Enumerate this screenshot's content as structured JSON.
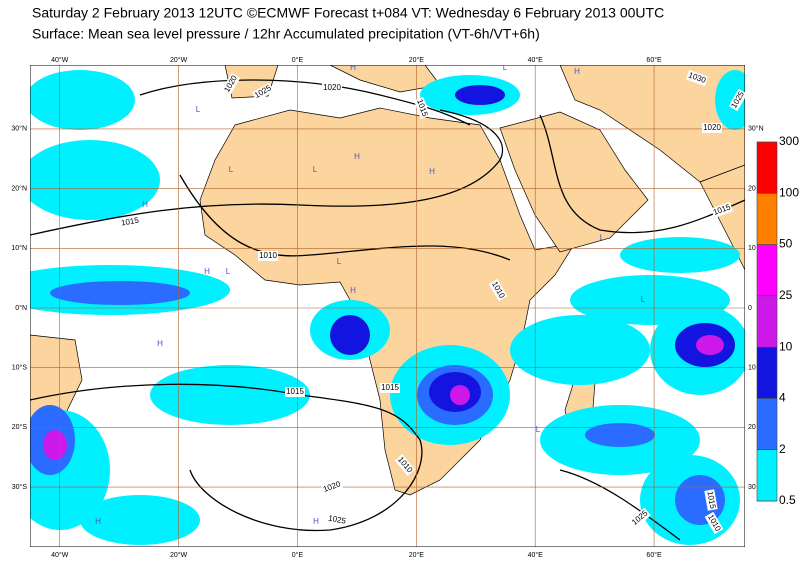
{
  "header": {
    "title": "Saturday 2 February 2013 12UTC ©ECMWF Forecast t+084 VT: Wednesday 6 February 2013 00UTC",
    "subtitle": "Surface: Mean sea level pressure / 12hr Accumulated precipitation (VT-6h/VT+6h)"
  },
  "map": {
    "lon_ticks": [
      {
        "value": -40,
        "label": "40°W"
      },
      {
        "value": -20,
        "label": "20°W"
      },
      {
        "value": 0,
        "label": "0°E"
      },
      {
        "value": 20,
        "label": "20°E"
      },
      {
        "value": 40,
        "label": "40°E"
      },
      {
        "value": 60,
        "label": "60°E"
      }
    ],
    "lat_ticks": [
      {
        "value": 30,
        "label": "30°N"
      },
      {
        "value": 20,
        "label": "20°N"
      },
      {
        "value": 10,
        "label": "10°N"
      },
      {
        "value": 0,
        "label": "0°N"
      },
      {
        "value": -10,
        "label": "10°S"
      },
      {
        "value": -20,
        "label": "20°S"
      },
      {
        "value": -30,
        "label": "30°S"
      }
    ],
    "lat_right_labels": [
      "30°N",
      "20",
      "10",
      "0",
      "10",
      "20",
      "30"
    ],
    "isobar_labels": [
      "1020",
      "1025",
      "1020",
      "1015",
      "1030",
      "1025",
      "1020",
      "1015",
      "1015",
      "1010",
      "1010",
      "1015",
      "1015",
      "1010",
      "1020",
      "1025",
      "1025",
      "1015",
      "1010"
    ],
    "pressure_centres": [
      "H",
      "L",
      "L",
      "H",
      "H",
      "L",
      "H",
      "L",
      "H",
      "L",
      "H",
      "L",
      "H",
      "L",
      "L",
      "H",
      "L",
      "H",
      "H",
      "L"
    ]
  },
  "colorbar": {
    "ticks": [
      300,
      100,
      50,
      25,
      10,
      4,
      2,
      0.5
    ],
    "colors": [
      "#ff0000",
      "#ff8000",
      "#ff00ff",
      "#cc18e8",
      "#1414e0",
      "#2a6cff",
      "#00f0ff"
    ]
  }
}
